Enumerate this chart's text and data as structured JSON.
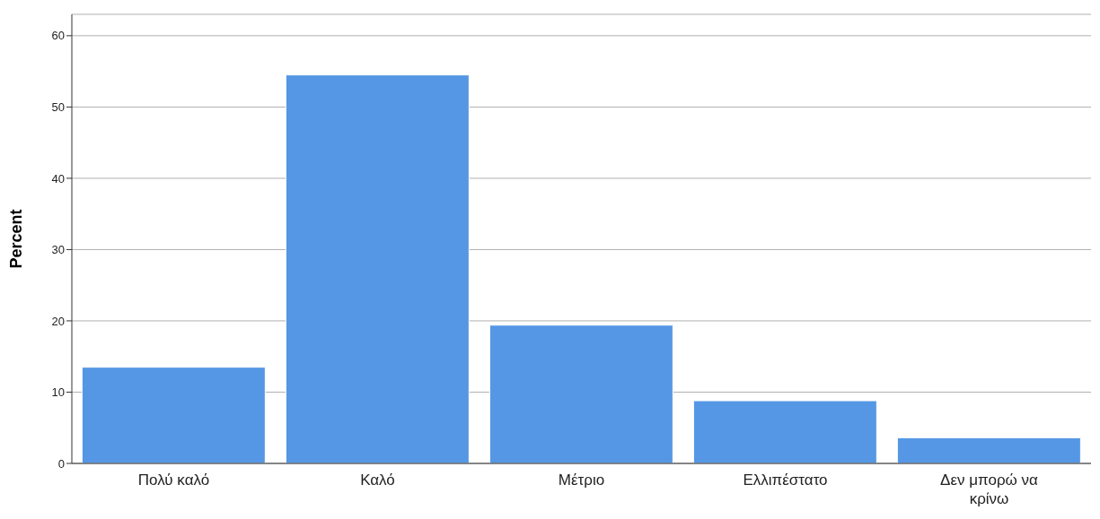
{
  "chart_data": {
    "type": "bar",
    "ylabel": "Percent",
    "categories": [
      "Πολύ καλό",
      "Καλό",
      "Μέτριο",
      "Ελλιπέστατο",
      "Δεν μπορώ να κρίνω"
    ],
    "values": [
      13.5,
      54.5,
      19.4,
      8.8,
      3.6
    ],
    "color": "#5597e4",
    "ylim": [
      0,
      63
    ],
    "yticks": [
      0,
      10,
      20,
      30,
      40,
      50,
      60
    ],
    "grid": "y"
  }
}
